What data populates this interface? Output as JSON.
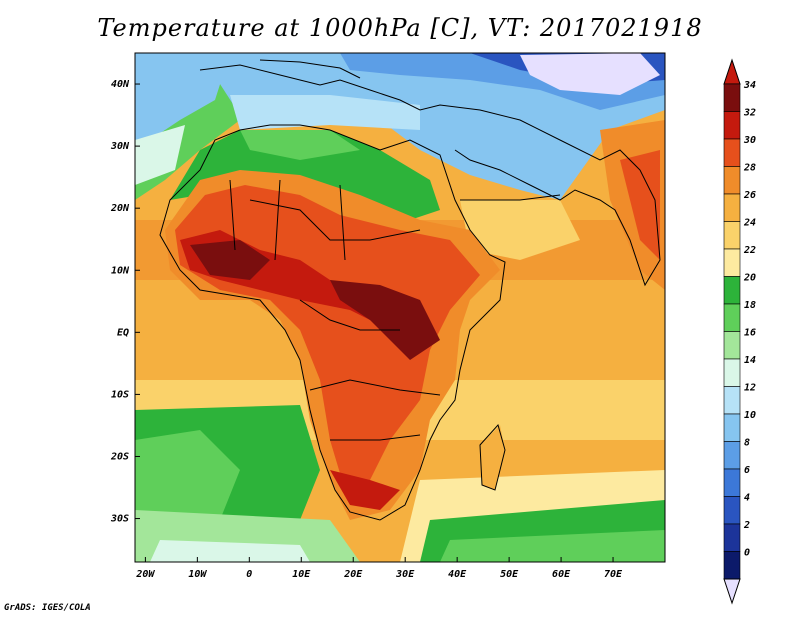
{
  "title": "Temperature at 1000hPa [C], VT: 2017021918",
  "credit": "GrADS: IGES/COLA",
  "map": {
    "lon_labels": [
      "20W",
      "10W",
      "0",
      "10E",
      "20E",
      "30E",
      "40E",
      "50E",
      "60E",
      "70E"
    ],
    "lat_labels": [
      "40N",
      "30N",
      "20N",
      "10N",
      "EQ",
      "10S",
      "20S",
      "30S"
    ],
    "lon_range": [
      -22,
      80
    ],
    "lat_range": [
      -37,
      45
    ]
  },
  "colorbar": {
    "labels": [
      "34",
      "32",
      "30",
      "28",
      "26",
      "24",
      "22",
      "20",
      "18",
      "16",
      "14",
      "12",
      "10",
      "8",
      "6",
      "4",
      "2",
      "0"
    ],
    "colors": [
      "#7a0e0e",
      "#c41a0e",
      "#e6501c",
      "#f08c2a",
      "#f5b040",
      "#fad26a",
      "#fdeaa0",
      "#2db33a",
      "#5fcf5a",
      "#a3e69a",
      "#daf7e8",
      "#b6e2f7",
      "#86c5f0",
      "#5c9ee6",
      "#3c78d8",
      "#2a55c0",
      "#1c349a",
      "#0c1a6a"
    ],
    "under_color": "#e6e0ff",
    "over_color": "#c41a0e"
  }
}
